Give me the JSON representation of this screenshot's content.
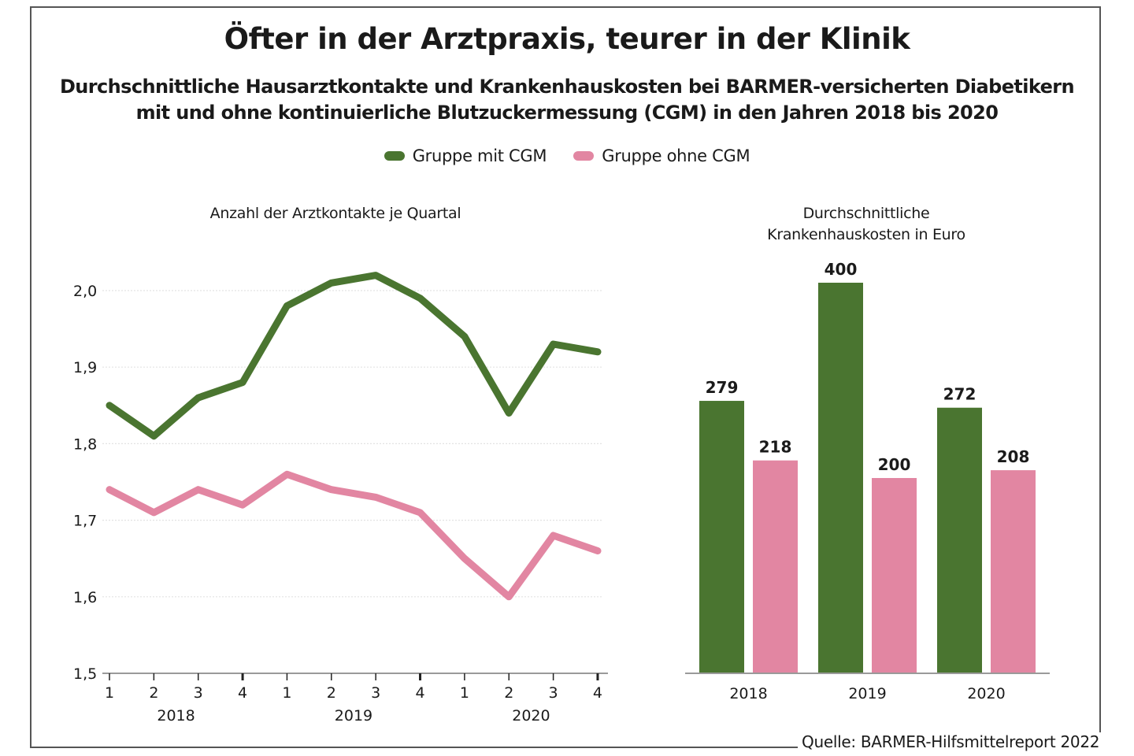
{
  "title": "Öfter in der Arztpraxis, teurer in der Klinik",
  "subtitle_lines": [
    "Durchschnittliche Hausarztkontakte und Krankenhauskosten bei BARMER-versicherten Diabetikern",
    "mit und ohne kontinuierliche Blutzuckermessung (CGM) in den Jahren 2018 bis 2020"
  ],
  "legend": [
    {
      "label": "Gruppe mit CGM",
      "color": "#4a7530"
    },
    {
      "label": "Gruppe ohne CGM",
      "color": "#e286a2"
    }
  ],
  "source": "Quelle: BARMER-Hilfsmittelreport 2022",
  "chart_data": [
    {
      "type": "line",
      "title": "Anzahl der Arztkontakte je Quartal",
      "xlabel": "",
      "ylabel": "",
      "ylim": [
        1.5,
        2.0
      ],
      "yticks": [
        1.5,
        1.6,
        1.7,
        1.8,
        1.9,
        2.0
      ],
      "ytick_labels": [
        "1,5",
        "1,6",
        "1,7",
        "1,8",
        "1,9",
        "2,0"
      ],
      "x": [
        "2018 Q1",
        "2018 Q2",
        "2018 Q3",
        "2018 Q4",
        "2019 Q1",
        "2019 Q2",
        "2019 Q3",
        "2019 Q4",
        "2020 Q1",
        "2020 Q2",
        "2020 Q3",
        "2020 Q4"
      ],
      "xtick_labels": [
        "1",
        "2",
        "3",
        "4",
        "1",
        "2",
        "3",
        "4",
        "1",
        "2",
        "3",
        "4"
      ],
      "year_labels": [
        "2018",
        "2019",
        "2020"
      ],
      "grid": true,
      "series": [
        {
          "name": "Gruppe mit CGM",
          "color": "#4a7530",
          "values": [
            1.85,
            1.81,
            1.86,
            1.88,
            1.98,
            2.01,
            2.02,
            1.99,
            1.94,
            1.84,
            1.93,
            1.92
          ]
        },
        {
          "name": "Gruppe ohne CGM",
          "color": "#e286a2",
          "values": [
            1.74,
            1.71,
            1.74,
            1.72,
            1.76,
            1.74,
            1.73,
            1.71,
            1.65,
            1.6,
            1.68,
            1.66
          ]
        }
      ],
      "legend_position": "top-center"
    },
    {
      "type": "bar",
      "title_lines": [
        "Durchschnittliche",
        "Krankenhauskosten in Euro"
      ],
      "categories": [
        "2018",
        "2019",
        "2020"
      ],
      "ylim": [
        0,
        400
      ],
      "grid": false,
      "series": [
        {
          "name": "Gruppe mit CGM",
          "color": "#4a7530",
          "values": [
            279,
            400,
            272
          ]
        },
        {
          "name": "Gruppe ohne CGM",
          "color": "#e286a2",
          "values": [
            218,
            200,
            208
          ]
        }
      ],
      "data_labels": true,
      "legend_position": "top-center"
    }
  ]
}
